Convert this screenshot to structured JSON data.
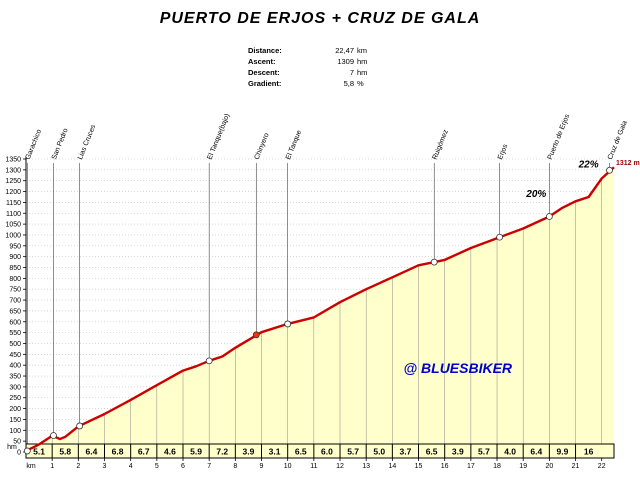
{
  "title": "PUERTO DE ERJOS + CRUZ DE GALA",
  "stats": [
    {
      "label": "Distance:",
      "value": "22,47",
      "unit": "km"
    },
    {
      "label": "Ascent:",
      "value": "1309",
      "unit": "hm"
    },
    {
      "label": "Descent:",
      "value": "7",
      "unit": "hm"
    },
    {
      "label": "Gradient:",
      "value": "5,8",
      "unit": "%"
    }
  ],
  "watermark": "@ BLUESBIKER",
  "colors": {
    "fill": "#ffffcc",
    "profile": "#cc0000",
    "watermark": "#0000cc",
    "grid": "#c0c0c0",
    "axis": "#000000"
  },
  "chart_data": {
    "type": "area",
    "title": "PUERTO DE ERJOS + CRUZ DE GALA",
    "xlabel": "km",
    "ylabel": "hm",
    "xlim": [
      0,
      22.47
    ],
    "ylim": [
      0,
      1350
    ],
    "y_ticks": [
      0,
      50,
      100,
      150,
      200,
      250,
      300,
      350,
      400,
      450,
      500,
      550,
      600,
      650,
      700,
      750,
      800,
      850,
      900,
      950,
      1000,
      1050,
      1100,
      1150,
      1200,
      1250,
      1300,
      1350
    ],
    "x_ticks": [
      "1",
      "2",
      "3",
      "4",
      "5",
      "6",
      "7",
      "8",
      "9",
      "10",
      "11",
      "12",
      "13",
      "14",
      "15",
      "16",
      "17",
      "18",
      "19",
      "20",
      "21",
      "22"
    ],
    "grid": true,
    "points": [
      {
        "x": 0,
        "y": 5
      },
      {
        "x": 0.5,
        "y": 35
      },
      {
        "x": 1,
        "y": 75
      },
      {
        "x": 1.3,
        "y": 60
      },
      {
        "x": 1.5,
        "y": 70
      },
      {
        "x": 2,
        "y": 118
      },
      {
        "x": 3,
        "y": 175
      },
      {
        "x": 4,
        "y": 240
      },
      {
        "x": 5,
        "y": 308
      },
      {
        "x": 6,
        "y": 375
      },
      {
        "x": 6.5,
        "y": 395
      },
      {
        "x": 7,
        "y": 420
      },
      {
        "x": 7.5,
        "y": 440
      },
      {
        "x": 8,
        "y": 480
      },
      {
        "x": 9,
        "y": 552
      },
      {
        "x": 10,
        "y": 590
      },
      {
        "x": 11,
        "y": 620
      },
      {
        "x": 12,
        "y": 690
      },
      {
        "x": 13,
        "y": 750
      },
      {
        "x": 14,
        "y": 805
      },
      {
        "x": 15,
        "y": 860
      },
      {
        "x": 16,
        "y": 885
      },
      {
        "x": 17,
        "y": 940
      },
      {
        "x": 18,
        "y": 985
      },
      {
        "x": 19,
        "y": 1030
      },
      {
        "x": 20,
        "y": 1085
      },
      {
        "x": 20.5,
        "y": 1125
      },
      {
        "x": 21,
        "y": 1155
      },
      {
        "x": 21.5,
        "y": 1175
      },
      {
        "x": 22,
        "y": 1260
      },
      {
        "x": 22.47,
        "y": 1312
      }
    ],
    "segment_gradients": [
      "5.1",
      "5.8",
      "6.4",
      "6.8",
      "6.7",
      "4.6",
      "5.9",
      "7.2",
      "3.9",
      "3.1",
      "6.5",
      "6.0",
      "5.7",
      "5.0",
      "3.7",
      "6.5",
      "3.9",
      "5.7",
      "4.0",
      "6.4",
      "9.9",
      "16"
    ],
    "waypoints": [
      {
        "name": "Garachico",
        "x": 0.05,
        "y": 5
      },
      {
        "name": "San Pedro",
        "x": 1.05,
        "y": 76
      },
      {
        "name": "Lias Cruces",
        "x": 2.05,
        "y": 120
      },
      {
        "name": "El Tanque(bajo)",
        "x": 7.0,
        "y": 420
      },
      {
        "name": "Chinyero",
        "x": 8.8,
        "y": 540
      },
      {
        "name": "El Tanque",
        "x": 10.0,
        "y": 590
      },
      {
        "name": "Ruigómez",
        "x": 15.6,
        "y": 875
      },
      {
        "name": "Erjos",
        "x": 18.1,
        "y": 990
      },
      {
        "name": "Puerto de Erjos",
        "x": 20.0,
        "y": 1085
      },
      {
        "name": "Cruz de Gala",
        "x": 22.3,
        "y": 1298
      }
    ],
    "annotations": [
      {
        "text": "20%",
        "x": 19.5,
        "y": 1175
      },
      {
        "text": "22%",
        "x": 21.5,
        "y": 1310
      },
      {
        "text": "1312 m",
        "x": 22.47,
        "y": 1312
      }
    ]
  }
}
